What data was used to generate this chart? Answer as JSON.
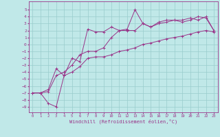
{
  "xlabel": "Windchill (Refroidissement éolien,°C)",
  "bg_color": "#c0e8e8",
  "line_color": "#993388",
  "grid_color": "#99cccc",
  "x_ticks": [
    0,
    1,
    2,
    3,
    4,
    5,
    6,
    7,
    8,
    9,
    10,
    11,
    12,
    13,
    14,
    15,
    16,
    17,
    18,
    19,
    20,
    21,
    22,
    23
  ],
  "y_ticks": [
    5,
    4,
    3,
    2,
    1,
    0,
    -1,
    -2,
    -3,
    -4,
    -5,
    -6,
    -7,
    -8,
    -9
  ],
  "xlim": [
    -0.5,
    23.5
  ],
  "ylim": [
    -9.8,
    6.2
  ],
  "line1_x": [
    0,
    1,
    2,
    3,
    4,
    5,
    6,
    7,
    8,
    9,
    10,
    11,
    12,
    13,
    14,
    15,
    16,
    17,
    18,
    19,
    20,
    21,
    22,
    23
  ],
  "line1_y": [
    -7,
    -7,
    -8.5,
    -9,
    -4.5,
    -4,
    -3.2,
    -2,
    -1.8,
    -1.8,
    -1.5,
    -1,
    -0.8,
    -0.5,
    0,
    0.2,
    0.5,
    0.8,
    1,
    1.2,
    1.5,
    1.8,
    2,
    1.8
  ],
  "line2_x": [
    0,
    1,
    2,
    3,
    4,
    5,
    6,
    7,
    8,
    9,
    10,
    11,
    12,
    13,
    14,
    15,
    16,
    17,
    18,
    19,
    20,
    21,
    22,
    23
  ],
  "line2_y": [
    -7,
    -7,
    -6.8,
    -4.5,
    -4,
    -3,
    -1.5,
    -1,
    -1,
    -0.5,
    1,
    2,
    2.2,
    5,
    3,
    2.5,
    3,
    3.2,
    3.5,
    3.2,
    3.5,
    4,
    3.8,
    2
  ],
  "line3_x": [
    0,
    1,
    2,
    3,
    4,
    5,
    6,
    7,
    8,
    9,
    10,
    11,
    12,
    13,
    14,
    15,
    16,
    17,
    18,
    19,
    20,
    21,
    22,
    23
  ],
  "line3_y": [
    -7,
    -7,
    -6.5,
    -3.5,
    -4.5,
    -2,
    -2.5,
    2.2,
    1.8,
    1.8,
    2.5,
    2,
    2,
    2,
    3,
    2.5,
    3.2,
    3.5,
    3.5,
    3.5,
    3.8,
    3.5,
    4,
    2
  ]
}
